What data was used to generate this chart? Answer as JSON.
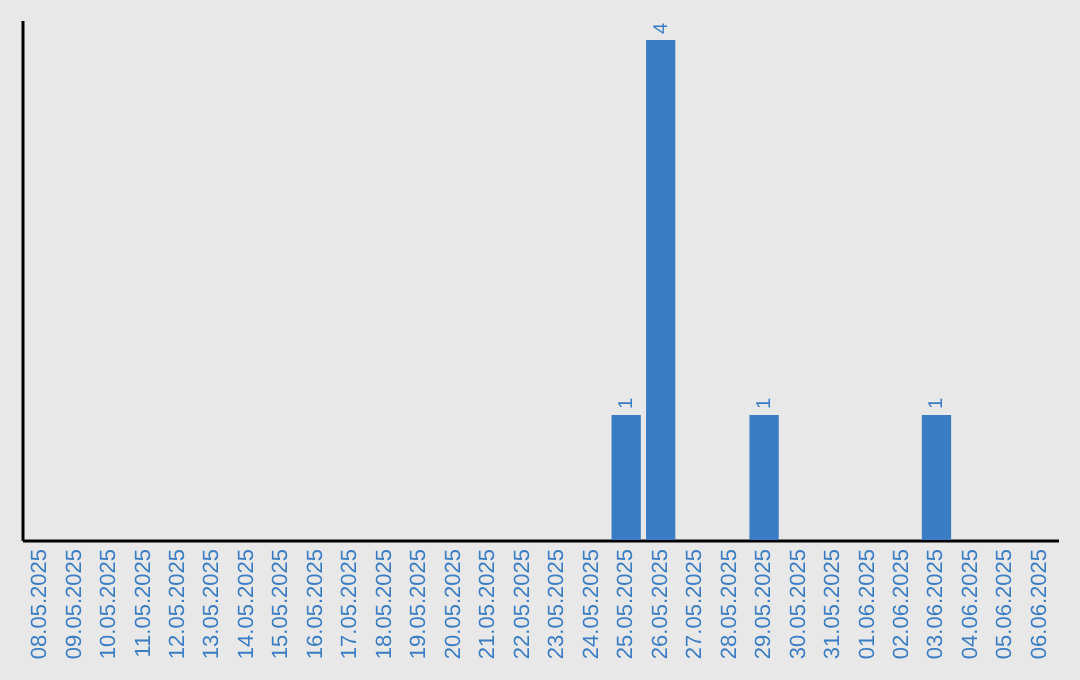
{
  "chart_data": {
    "type": "bar",
    "categories": [
      "08.05.2025",
      "09.05.2025",
      "10.05.2025",
      "11.05.2025",
      "12.05.2025",
      "13.05.2025",
      "14.05.2025",
      "15.05.2025",
      "16.05.2025",
      "17.05.2025",
      "18.05.2025",
      "19.05.2025",
      "20.05.2025",
      "21.05.2025",
      "22.05.2025",
      "23.05.2025",
      "24.05.2025",
      "25.05.2025",
      "26.05.2025",
      "27.05.2025",
      "28.05.2025",
      "29.05.2025",
      "30.05.2025",
      "31.05.2025",
      "01.06.2025",
      "02.06.2025",
      "03.06.2025",
      "04.06.2025",
      "05.06.2025",
      "06.06.2025"
    ],
    "values": [
      null,
      null,
      null,
      null,
      null,
      null,
      null,
      null,
      null,
      null,
      null,
      null,
      null,
      null,
      null,
      null,
      null,
      1,
      4,
      null,
      null,
      1,
      null,
      null,
      null,
      null,
      1,
      null,
      null,
      null
    ],
    "value_labels": [
      null,
      null,
      null,
      null,
      null,
      null,
      null,
      null,
      null,
      null,
      null,
      null,
      null,
      null,
      null,
      null,
      null,
      "1",
      "4",
      null,
      null,
      "1",
      null,
      null,
      null,
      null,
      "1",
      null,
      null,
      null
    ],
    "color": "#3a7dc4",
    "grid": false,
    "legend": false
  }
}
